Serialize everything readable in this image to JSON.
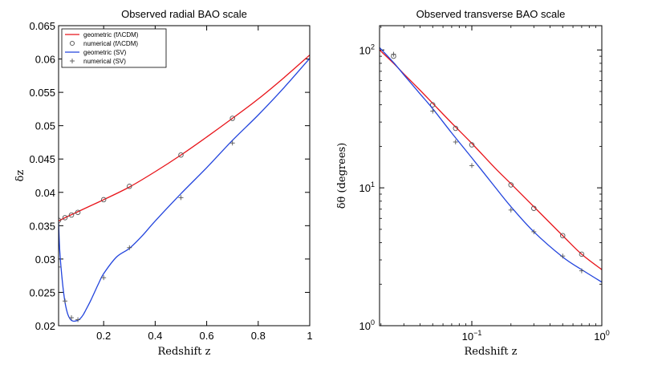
{
  "colors": {
    "red": "#e8141a",
    "blue": "#2244dd",
    "marker": "#555555"
  },
  "chart_data": [
    {
      "type": "line",
      "title": "Observed radial BAO scale",
      "xlabel": "Redshift z",
      "ylabel": "δz",
      "xlim": [
        0.025,
        1.0
      ],
      "ylim": [
        0.02,
        0.065
      ],
      "xscale": "linear",
      "yscale": "linear",
      "xticks": [
        {
          "v": 0.2,
          "label": "0.2"
        },
        {
          "v": 0.4,
          "label": "0.4"
        },
        {
          "v": 0.6,
          "label": "0.6"
        },
        {
          "v": 0.8,
          "label": "0.8"
        },
        {
          "v": 1.0,
          "label": "1"
        }
      ],
      "yticks": [
        {
          "v": 0.02,
          "label": "0.02"
        },
        {
          "v": 0.025,
          "label": "0.025"
        },
        {
          "v": 0.03,
          "label": "0.03"
        },
        {
          "v": 0.035,
          "label": "0.035"
        },
        {
          "v": 0.04,
          "label": "0.04"
        },
        {
          "v": 0.045,
          "label": "0.045"
        },
        {
          "v": 0.05,
          "label": "0.05"
        },
        {
          "v": 0.055,
          "label": "0.055"
        },
        {
          "v": 0.06,
          "label": "0.06"
        },
        {
          "v": 0.065,
          "label": "0.065"
        }
      ],
      "legend": {
        "position": "top-left",
        "entries": [
          {
            "label": "geometric (fΛCDM)",
            "style": "line",
            "color": "red"
          },
          {
            "label": "numerical (fΛCDM)",
            "style": "circle",
            "color": "marker"
          },
          {
            "label": "geometric (SV)",
            "style": "line",
            "color": "blue"
          },
          {
            "label": "numerical (SV)",
            "style": "plus",
            "color": "marker"
          }
        ]
      },
      "series": [
        {
          "name": "geometric (fΛCDM)",
          "style": "line",
          "color": "red",
          "x": [
            0.025,
            0.05,
            0.1,
            0.15,
            0.2,
            0.3,
            0.4,
            0.5,
            0.6,
            0.7,
            0.8,
            0.9,
            1.0
          ],
          "y": [
            0.0357,
            0.0362,
            0.0371,
            0.038,
            0.0389,
            0.0408,
            0.0431,
            0.0456,
            0.0483,
            0.0511,
            0.054,
            0.0572,
            0.0606
          ]
        },
        {
          "name": "numerical (fΛCDM)",
          "style": "circle",
          "color": "marker",
          "x": [
            0.025,
            0.05,
            0.075,
            0.1,
            0.2,
            0.3,
            0.5,
            0.7
          ],
          "y": [
            0.0358,
            0.0362,
            0.0366,
            0.037,
            0.0389,
            0.0409,
            0.0456,
            0.0511
          ]
        },
        {
          "name": "geometric (SV)",
          "style": "line",
          "color": "blue",
          "x": [
            0.025,
            0.03,
            0.04,
            0.05,
            0.06,
            0.07,
            0.08,
            0.09,
            0.1,
            0.11,
            0.12,
            0.13,
            0.15,
            0.18,
            0.2,
            0.25,
            0.3,
            0.35,
            0.4,
            0.5,
            0.6,
            0.7,
            0.8,
            0.9,
            1.0
          ],
          "y": [
            0.0355,
            0.031,
            0.0265,
            0.0235,
            0.0218,
            0.021,
            0.0207,
            0.0207,
            0.0208,
            0.0211,
            0.0216,
            0.0223,
            0.0238,
            0.0263,
            0.0278,
            0.0303,
            0.0316,
            0.0335,
            0.0357,
            0.0398,
            0.0437,
            0.0478,
            0.0516,
            0.0557,
            0.0601
          ]
        },
        {
          "name": "numerical (SV)",
          "style": "plus",
          "color": "marker",
          "x": [
            0.025,
            0.05,
            0.075,
            0.1,
            0.2,
            0.3,
            0.5,
            0.7
          ],
          "y": [
            0.0288,
            0.0237,
            0.0212,
            0.0209,
            0.0272,
            0.0317,
            0.0392,
            0.0474
          ]
        }
      ]
    },
    {
      "type": "line",
      "title": "Observed transverse BAO scale",
      "xlabel": "Redshift z",
      "ylabel": "δθ (degrees)",
      "xlim": [
        0.0195,
        1.0
      ],
      "ylim": [
        1,
        150
      ],
      "xscale": "log",
      "yscale": "log",
      "xticks": [
        {
          "v": 0.1,
          "base": "10",
          "exp": "−1"
        },
        {
          "v": 1.0,
          "base": "10",
          "exp": "0"
        }
      ],
      "yticks": [
        {
          "v": 1,
          "base": "10",
          "exp": "0"
        },
        {
          "v": 10,
          "base": "10",
          "exp": "1"
        },
        {
          "v": 100,
          "base": "10",
          "exp": "2"
        }
      ],
      "series": [
        {
          "name": "geometric (fΛCDM)",
          "style": "line",
          "color": "red",
          "x": [
            0.0195,
            0.025,
            0.03,
            0.04,
            0.05,
            0.07,
            0.1,
            0.15,
            0.2,
            0.3,
            0.5,
            0.7,
            1.0
          ],
          "y": [
            100,
            80,
            67,
            51,
            41,
            29.5,
            21,
            14,
            10.7,
            7.3,
            4.5,
            3.3,
            2.55
          ]
        },
        {
          "name": "numerical (fΛCDM)",
          "style": "circle",
          "color": "marker",
          "x": [
            0.025,
            0.05,
            0.075,
            0.1,
            0.2,
            0.3,
            0.5,
            0.7
          ],
          "y": [
            90,
            40,
            27,
            20.5,
            10.5,
            7.1,
            4.5,
            3.3
          ]
        },
        {
          "name": "geometric (SV)",
          "style": "line",
          "color": "blue",
          "x": [
            0.0195,
            0.025,
            0.03,
            0.04,
            0.05,
            0.07,
            0.1,
            0.15,
            0.2,
            0.3,
            0.5,
            0.7,
            1.0
          ],
          "y": [
            104,
            81,
            66,
            48,
            37.5,
            25,
            16.5,
            10.2,
            7.3,
            4.8,
            3.15,
            2.55,
            2.07
          ]
        },
        {
          "name": "numerical (SV)",
          "style": "plus",
          "color": "marker",
          "x": [
            0.025,
            0.05,
            0.075,
            0.1,
            0.2,
            0.3,
            0.5,
            0.7
          ],
          "y": [
            93,
            36,
            21.5,
            14.5,
            6.9,
            4.8,
            3.2,
            2.5
          ]
        }
      ]
    }
  ]
}
